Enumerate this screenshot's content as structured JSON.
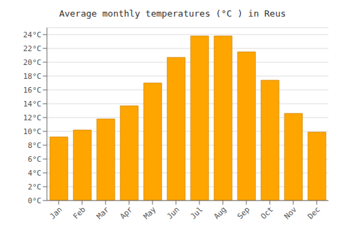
{
  "chart_data": {
    "type": "bar",
    "title": "Average monthly temperatures (°C ) in Reus",
    "categories": [
      "Jan",
      "Feb",
      "Mar",
      "Apr",
      "May",
      "Jun",
      "Jul",
      "Aug",
      "Sep",
      "Oct",
      "Nov",
      "Dec"
    ],
    "values": [
      9.2,
      10.2,
      11.8,
      13.7,
      17.0,
      20.7,
      23.8,
      23.8,
      21.5,
      17.4,
      12.6,
      9.9
    ],
    "color": "#FFA500",
    "ylim": [
      0,
      25
    ],
    "yticks": [
      {
        "value": 0,
        "label": "0°C"
      },
      {
        "value": 2,
        "label": "2°C"
      },
      {
        "value": 4,
        "label": "4°C"
      },
      {
        "value": 6,
        "label": "6°C"
      },
      {
        "value": 8,
        "label": "8°C"
      },
      {
        "value": 10,
        "label": "10°C"
      },
      {
        "value": 12,
        "label": "12°C"
      },
      {
        "value": 14,
        "label": "14°C"
      },
      {
        "value": 16,
        "label": "16°C"
      },
      {
        "value": 18,
        "label": "18°C"
      },
      {
        "value": 20,
        "label": "20°C"
      },
      {
        "value": 22,
        "label": "22°C"
      },
      {
        "value": 24,
        "label": "24°C"
      }
    ],
    "grid": true
  }
}
